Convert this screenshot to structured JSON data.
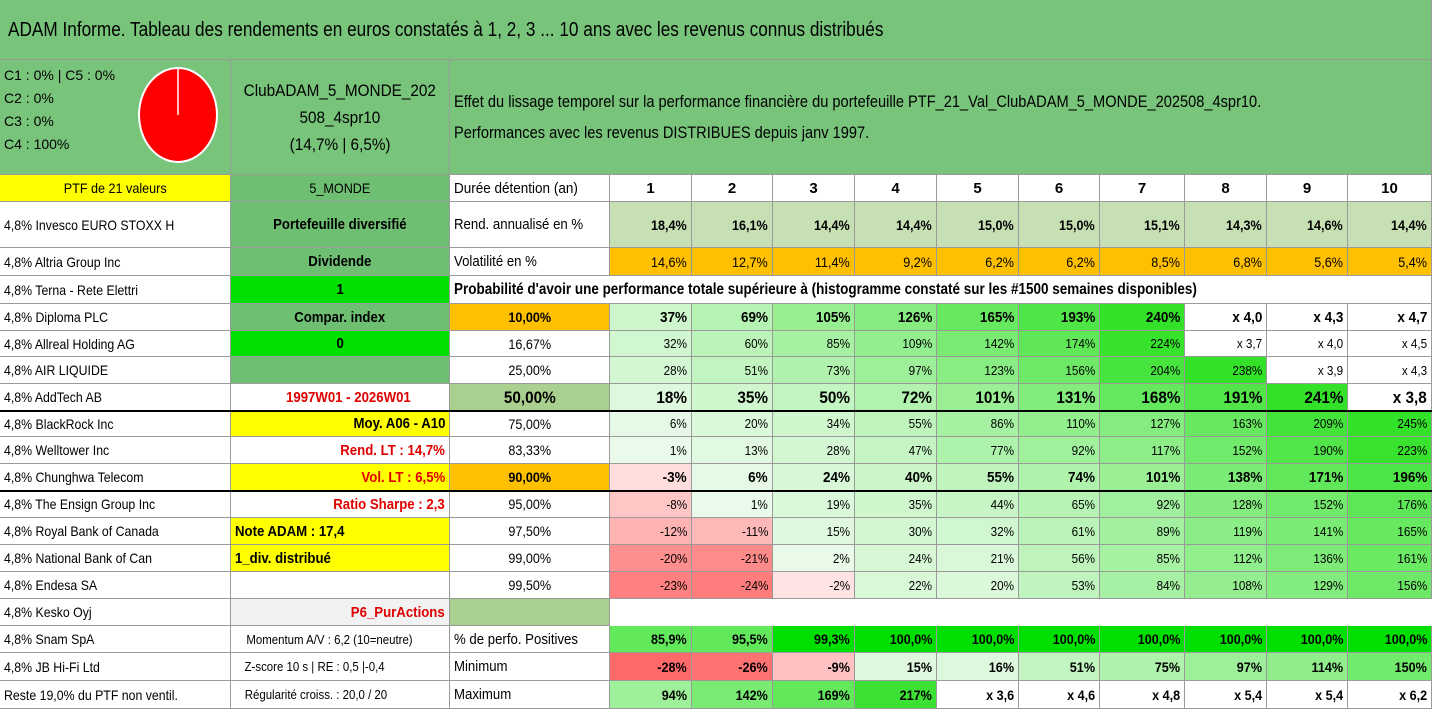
{
  "title": "ADAM Informe. Tableau des rendements en euros constatés à 1, 2, 3 ... 10 ans avec les revenus connus distribués",
  "pie_block": {
    "lines": [
      "C1 : 0% | C5 : 0%",
      "C2 : 0%",
      "C3 : 0%",
      "C4 : 100%"
    ],
    "pie_color": "#ff0000"
  },
  "fund": {
    "name_line1": "ClubADAM_5_MONDE_202",
    "name_line2": "508_4spr10",
    "perf": "(14,7% | 6,5%)"
  },
  "description": {
    "line1": "Effet du lissage temporel sur la performance financière du portefeuille PTF_21_Val_ClubADAM_5_MONDE_202508_4spr10.",
    "line2": "Performances avec les revenus DISTRIBUES depuis janv 1997."
  },
  "holdings_header": "PTF de 21 valeurs",
  "holdings": [
    "4,8% Invesco EURO STOXX H",
    "4,8% Altria Group Inc",
    "4,8% Terna - Rete Elettri",
    "4,8% Diploma PLC",
    "4,8% Allreal Holding AG",
    "4,8% AIR LIQUIDE",
    "4,8% AddTech AB",
    "4,8% BlackRock Inc",
    "4,8% Welltower Inc",
    "4,8% Chunghwa Telecom",
    "4,8% The Ensign Group Inc",
    "4,8% Royal Bank of Canada",
    "4,8% National Bank of Can",
    "4,8% Endesa SA",
    "4,8% Kesko Oyj",
    "4,8% Snam SpA",
    "4,8% JB Hi-Fi Ltd",
    "Reste 19,0% du PTF non ventil."
  ],
  "info_col": {
    "header": "5_MONDE",
    "items": [
      "Portefeuille diversifié",
      "Dividende",
      "1",
      "Compar. index",
      "0",
      "",
      "1997W01 - 2026W01",
      "Moy. A06 - A10",
      "Rend. LT : 14,7%",
      "Vol. LT : 6,5%",
      "Ratio Sharpe : 2,3",
      "Note ADAM : 17,4",
      "1_div. distribué",
      "",
      "P6_PurActions",
      "Momentum A/V : 6,2 (10=neutre)",
      "Z-score 10 s | RE : 0,5 |-0,4",
      "Régularité croiss. : 20,0 / 20"
    ]
  },
  "years": [
    "1",
    "2",
    "3",
    "4",
    "5",
    "6",
    "7",
    "8",
    "9",
    "10"
  ],
  "labels": {
    "duration": "Durée détention (an)",
    "rend": "Rend. annualisé en %",
    "vol": "Volatilité en %",
    "prob": "Probabilité d'avoir une performance totale supérieure à (histogramme constaté sur les #1500 semaines disponibles)",
    "pct_pos": "% de perfo. Positives",
    "minimum": "Minimum",
    "maximum": "Maximum"
  },
  "rend": [
    "18,4%",
    "16,1%",
    "14,4%",
    "14,4%",
    "15,0%",
    "15,0%",
    "15,1%",
    "14,3%",
    "14,6%",
    "14,4%"
  ],
  "vol": [
    "14,6%",
    "12,7%",
    "11,4%",
    "9,2%",
    "6,2%",
    "6,2%",
    "8,5%",
    "6,8%",
    "5,6%",
    "5,4%"
  ],
  "prob_rows": [
    {
      "pct": "10,00%",
      "vals": [
        "37%",
        "69%",
        "105%",
        "126%",
        "165%",
        "193%",
        "240%",
        "x 4,0",
        "x 4,3",
        "x 4,7"
      ]
    },
    {
      "pct": "16,67%",
      "vals": [
        "32%",
        "60%",
        "85%",
        "109%",
        "142%",
        "174%",
        "224%",
        "x 3,7",
        "x 4,0",
        "x 4,5"
      ]
    },
    {
      "pct": "25,00%",
      "vals": [
        "28%",
        "51%",
        "73%",
        "97%",
        "123%",
        "156%",
        "204%",
        "238%",
        "x 3,9",
        "x 4,3"
      ]
    },
    {
      "pct": "50,00%",
      "vals": [
        "18%",
        "35%",
        "50%",
        "72%",
        "101%",
        "131%",
        "168%",
        "191%",
        "241%",
        "x 3,8"
      ]
    },
    {
      "pct": "75,00%",
      "vals": [
        "6%",
        "20%",
        "34%",
        "55%",
        "86%",
        "110%",
        "127%",
        "163%",
        "209%",
        "245%"
      ]
    },
    {
      "pct": "83,33%",
      "vals": [
        "1%",
        "13%",
        "28%",
        "47%",
        "77%",
        "92%",
        "117%",
        "152%",
        "190%",
        "223%"
      ]
    },
    {
      "pct": "90,00%",
      "vals": [
        "-3%",
        "6%",
        "24%",
        "40%",
        "55%",
        "74%",
        "101%",
        "138%",
        "171%",
        "196%"
      ]
    },
    {
      "pct": "95,00%",
      "vals": [
        "-8%",
        "1%",
        "19%",
        "35%",
        "44%",
        "65%",
        "92%",
        "128%",
        "152%",
        "176%"
      ]
    },
    {
      "pct": "97,50%",
      "vals": [
        "-12%",
        "-11%",
        "15%",
        "30%",
        "32%",
        "61%",
        "89%",
        "119%",
        "141%",
        "165%"
      ]
    },
    {
      "pct": "99,00%",
      "vals": [
        "-20%",
        "-21%",
        "2%",
        "24%",
        "21%",
        "56%",
        "85%",
        "112%",
        "136%",
        "161%"
      ]
    },
    {
      "pct": "99,50%",
      "vals": [
        "-23%",
        "-24%",
        "-2%",
        "22%",
        "20%",
        "53%",
        "84%",
        "108%",
        "129%",
        "156%"
      ]
    }
  ],
  "pct_pos": [
    "85,9%",
    "95,5%",
    "99,3%",
    "100,0%",
    "100,0%",
    "100,0%",
    "100,0%",
    "100,0%",
    "100,0%",
    "100,0%"
  ],
  "minimum": [
    "-28%",
    "-26%",
    "-9%",
    "15%",
    "16%",
    "51%",
    "75%",
    "97%",
    "114%",
    "150%"
  ],
  "maximum": [
    "94%",
    "142%",
    "169%",
    "217%",
    "x 3,6",
    "x 4,6",
    "x 4,8",
    "x 5,4",
    "x 5,4",
    "x 6,2"
  ],
  "colors": {
    "title_bg": "#78c47b",
    "yellow": "#ffff00",
    "green_box": "#6fbf73",
    "bright_green": "#00e000",
    "orange": "#ffc000",
    "rend_bg": "#c6e0b4",
    "red_text": "#e00000"
  }
}
